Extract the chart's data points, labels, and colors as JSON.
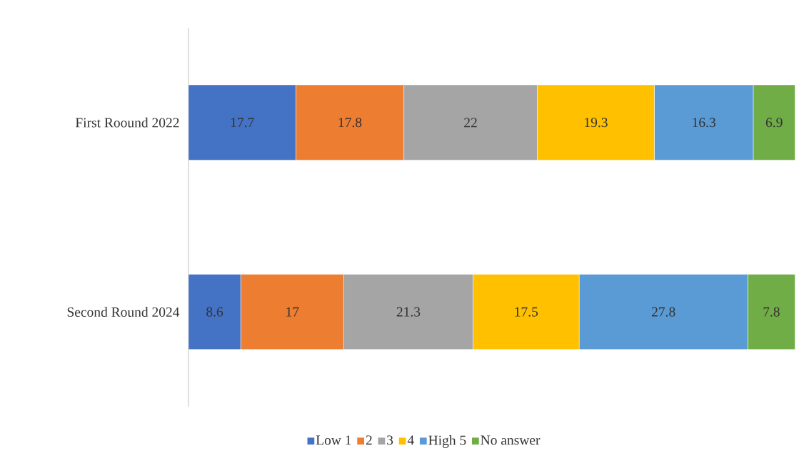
{
  "chart_data": {
    "type": "bar",
    "orientation": "horizontal",
    "stacked": true,
    "categories": [
      "First Roound 2022",
      "Second Round 2024"
    ],
    "tick_labels": "y",
    "data_labels": true,
    "legend": "bottom",
    "series": [
      {
        "name": "Low 1",
        "color": "#4472c4",
        "values": [
          17.7,
          8.6
        ]
      },
      {
        "name": "2",
        "color": "#ed7d31",
        "values": [
          17.8,
          17
        ]
      },
      {
        "name": "3",
        "color": "#a5a5a5",
        "values": [
          22,
          21.3
        ]
      },
      {
        "name": "4",
        "color": "#ffc000",
        "values": [
          19.3,
          17.5
        ]
      },
      {
        "name": "High 5",
        "color": "#5b9bd5",
        "values": [
          16.3,
          27.8
        ]
      },
      {
        "name": "No answer",
        "color": "#70ad47",
        "values": [
          6.9,
          7.8
        ]
      }
    ]
  }
}
